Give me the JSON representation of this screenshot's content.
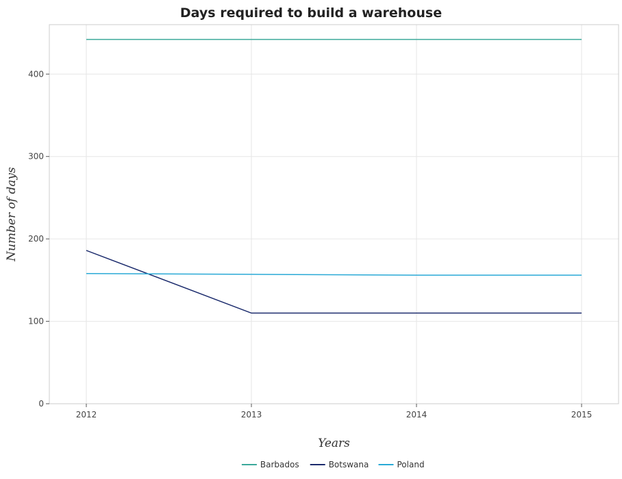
{
  "chart_data": {
    "type": "line",
    "title": "Days required to build a warehouse",
    "xlabel": "Years",
    "ylabel": "Number of days",
    "categories": [
      "2012",
      "2013",
      "2014",
      "2015"
    ],
    "yticks": [
      0,
      100,
      200,
      300,
      400
    ],
    "ylim": [
      0,
      460
    ],
    "grid": true,
    "legend_position": "bottom-center",
    "series": [
      {
        "name": "Barbados",
        "color": "#3aa89a",
        "values": [
          442,
          442,
          442,
          442
        ]
      },
      {
        "name": "Botswana",
        "color": "#1a2a6c",
        "values": [
          186,
          110,
          110,
          110
        ]
      },
      {
        "name": "Poland",
        "color": "#29a9d6",
        "values": [
          158,
          157,
          156,
          156
        ]
      }
    ]
  }
}
